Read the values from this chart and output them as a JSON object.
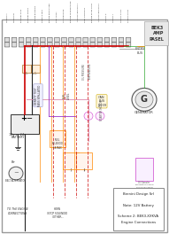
{
  "title": "BEK3\nAMP\nPASEL",
  "background_color": "#f5f5f5",
  "wire_colors": {
    "red": "#cc0000",
    "orange": "#ff8800",
    "black": "#222222",
    "gray": "#888888",
    "pink": "#dd88aa",
    "purple": "#9933cc",
    "green": "#33aa33",
    "yellow": "#ddcc00",
    "brown": "#885533",
    "blue": "#3366cc",
    "magenta": "#cc44cc"
  },
  "label_text": "Bernini Design Srl\n\nNote: 12V Battery\n\nScheme 2: BEK3-XXKVA\nEngine Connections",
  "terminal_labels": [
    "MODBUS-A",
    "MODBUS-B",
    "BATTERY PLUS",
    "BATTERY MINUS",
    "ENGINE BLINKING",
    "REMOTE TEST",
    "ENGINE REGULATED",
    "FUEL LEVEL",
    "OIL PRESSURE",
    "ENGINE TEMPERATURE",
    "J-ADJUSTABLE OUT 1",
    "FUEL SOLENOID",
    "ENGINE START PILOT",
    "J-ADJUSTABLE OUT 2",
    "OUTPUT K",
    "OUTPUT L",
    "OUTPUT FAULT",
    "SAFETY FAULT"
  ]
}
